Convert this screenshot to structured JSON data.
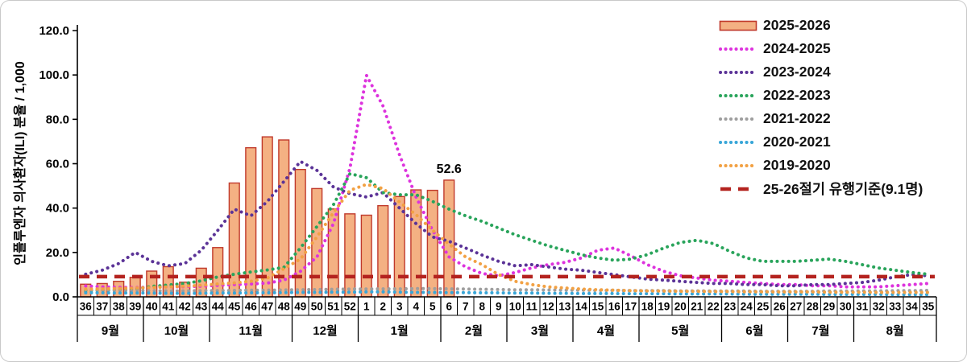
{
  "figure": {
    "background": "#ffffff",
    "border_color": "#c9c9c9"
  },
  "annotation": {
    "text": "52.6",
    "week": "6"
  },
  "legend": [
    {
      "label": "2025-2026",
      "swatch": "bar",
      "color": "#C0392B",
      "fill": "#F4B183"
    },
    {
      "label": "2024-2025",
      "swatch": "dots",
      "color": "#DD33DD"
    },
    {
      "label": "2023-2024",
      "swatch": "dots",
      "color": "#5B3397"
    },
    {
      "label": "2022-2023",
      "swatch": "dots",
      "color": "#29A45B"
    },
    {
      "label": "2021-2022",
      "swatch": "dots",
      "color": "#9E9E9E"
    },
    {
      "label": "2020-2021",
      "swatch": "dots",
      "color": "#38A6D8"
    },
    {
      "label": "2019-2020",
      "swatch": "dots",
      "color": "#F2A144"
    },
    {
      "label": "25-26절기 유행기준(9.1명)",
      "swatch": "dash",
      "color": "#B4231F"
    }
  ],
  "chart_data": {
    "type": "combo-bar-line",
    "title": "",
    "xlabel": "",
    "ylabel": "인플루엔자 의사환자(ILI) 분율 / 1,000",
    "ylim": [
      0,
      120
    ],
    "y_ticks": [
      "0.0",
      "20.0",
      "40.0",
      "60.0",
      "80.0",
      "100.0",
      "120.0"
    ],
    "grid": false,
    "legend_position": "top-right",
    "categories": [
      "36",
      "37",
      "38",
      "39",
      "40",
      "41",
      "42",
      "43",
      "44",
      "45",
      "46",
      "47",
      "48",
      "49",
      "50",
      "51",
      "52",
      "1",
      "2",
      "3",
      "4",
      "5",
      "6",
      "7",
      "8",
      "9",
      "10",
      "11",
      "12",
      "13",
      "14",
      "15",
      "16",
      "17",
      "18",
      "19",
      "20",
      "21",
      "22",
      "23",
      "24",
      "25",
      "26",
      "27",
      "28",
      "29",
      "30",
      "31",
      "32",
      "33",
      "34",
      "35"
    ],
    "months": [
      {
        "label": "9월",
        "span": 4
      },
      {
        "label": "10월",
        "span": 4
      },
      {
        "label": "11월",
        "span": 5
      },
      {
        "label": "12월",
        "span": 4
      },
      {
        "label": "1월",
        "span": 5
      },
      {
        "label": "2월",
        "span": 4
      },
      {
        "label": "3월",
        "span": 4
      },
      {
        "label": "4월",
        "span": 4
      },
      {
        "label": "5월",
        "span": 5
      },
      {
        "label": "6월",
        "span": 4
      },
      {
        "label": "7월",
        "span": 4
      },
      {
        "label": "8월",
        "span": 5
      }
    ],
    "bar_series": {
      "name": "2025-2026",
      "fill": "#F4B183",
      "stroke": "#C0392B",
      "values": [
        5.7,
        6.0,
        7.0,
        8.8,
        11.6,
        13.6,
        6.6,
        12.9,
        22.2,
        51.3,
        67.2,
        72.1,
        70.7,
        57.4,
        48.8,
        39.6,
        37.4,
        36.8,
        41.1,
        45.2,
        48.2,
        48.0,
        52.6,
        null,
        null,
        null,
        null,
        null,
        null,
        null,
        null,
        null,
        null,
        null,
        null,
        null,
        null,
        null,
        null,
        null,
        null,
        null,
        null,
        null,
        null,
        null,
        null,
        null,
        null,
        null,
        null,
        null
      ]
    },
    "line_series": [
      {
        "name": "2024-2025",
        "color": "#DD33DD",
        "values": [
          4.9,
          4.5,
          4.3,
          4.2,
          4.3,
          4.5,
          4.6,
          4.8,
          5.2,
          5.5,
          5.8,
          6.2,
          7.5,
          11.5,
          18,
          33,
          58,
          99.8,
          86,
          64,
          45,
          30,
          18,
          13.5,
          10.5,
          9.5,
          11,
          13,
          14.5,
          15.5,
          17.5,
          21,
          22,
          18.5,
          14.5,
          11.5,
          9.5,
          8.5,
          7.5,
          7,
          6.5,
          6,
          5.5,
          5.5,
          5,
          5,
          4.5,
          4.5,
          4.5,
          5,
          5.5,
          6
        ]
      },
      {
        "name": "2023-2024",
        "color": "#5B3397",
        "values": [
          10.2,
          12,
          15,
          20,
          16,
          14,
          15,
          21,
          30,
          39.5,
          36.5,
          43,
          52,
          61,
          57,
          49.5,
          46.5,
          45,
          47,
          40,
          33,
          27,
          25,
          22,
          18.8,
          16,
          14,
          14.5,
          13.5,
          12.5,
          12,
          11,
          10,
          9,
          8,
          7.5,
          7,
          6.5,
          6,
          6,
          5.5,
          5.5,
          5,
          5,
          5.5,
          5.5,
          6,
          6.5,
          7.5,
          9,
          10,
          9.5
        ]
      },
      {
        "name": "2022-2023",
        "color": "#29A45B",
        "values": [
          2.8,
          3,
          3.2,
          3.5,
          4.7,
          5.3,
          6,
          7.2,
          9,
          10.2,
          11.2,
          12.1,
          13.3,
          22,
          31.7,
          41.5,
          55.5,
          53.7,
          47,
          46,
          46,
          43,
          39.5,
          36.5,
          34,
          31,
          28,
          25.5,
          23,
          21,
          19,
          17.5,
          16.5,
          17,
          19,
          22,
          24.5,
          25.5,
          24,
          20.5,
          17.5,
          16,
          16,
          16,
          16.5,
          17,
          16,
          14.5,
          13,
          12,
          11,
          10.2
        ]
      },
      {
        "name": "2021-2022",
        "color": "#9E9E9E",
        "values": [
          3.2,
          3.0,
          2.9,
          2.8,
          2.8,
          2.7,
          2.7,
          2.8,
          2.8,
          2.9,
          3.0,
          3.0,
          3.1,
          3.2,
          3.3,
          3.4,
          3.5,
          3.5,
          3.6,
          3.6,
          3.7,
          3.7,
          3.6,
          3.5,
          3.4,
          3.3,
          3.2,
          3.2,
          3.1,
          3.0,
          3.0,
          2.9,
          2.9,
          2.8,
          2.8,
          2.8,
          2.7,
          2.7,
          2.6,
          2.6,
          2.6,
          2.5,
          2.5,
          2.5,
          2.5,
          2.6,
          2.6,
          2.7,
          2.7,
          2.8,
          2.8,
          2.9
        ]
      },
      {
        "name": "2020-2021",
        "color": "#38A6D8",
        "values": [
          1.8,
          1.8,
          1.7,
          1.7,
          1.7,
          1.6,
          1.6,
          1.6,
          1.7,
          1.7,
          1.8,
          1.8,
          1.9,
          2.0,
          2.0,
          2.1,
          2.1,
          2.2,
          2.2,
          2.1,
          2.0,
          2.0,
          1.9,
          1.9,
          1.8,
          1.8,
          1.7,
          1.7,
          1.6,
          1.6,
          1.5,
          1.5,
          1.5,
          1.4,
          1.4,
          1.4,
          1.3,
          1.3,
          1.3,
          1.3,
          1.2,
          1.2,
          1.2,
          1.2,
          1.2,
          1.1,
          1.1,
          1.1,
          1.1,
          1.0,
          1.0,
          1.0
        ]
      },
      {
        "name": "2019-2020",
        "color": "#F2A144",
        "values": [
          3.5,
          3.6,
          3.8,
          4.0,
          4.2,
          4.5,
          4.8,
          5.2,
          5.8,
          6.3,
          7.0,
          8.5,
          12.7,
          17,
          27,
          38,
          48,
          50.7,
          48.8,
          42.7,
          37,
          30,
          23.7,
          18,
          14.5,
          10,
          7,
          5.5,
          4.5,
          4.0,
          3.5,
          3.2,
          3.0,
          2.8,
          2.7,
          2.6,
          2.5,
          2.5,
          2.4,
          2.4,
          2.3,
          2.3,
          2.2,
          2.2,
          2.2,
          2.1,
          2.1,
          2.1,
          2.0,
          2.0,
          2.0,
          2.0
        ]
      }
    ],
    "threshold": {
      "name": "25-26절기 유행기준(9.1명)",
      "value": 9.1,
      "color": "#B4231F"
    }
  }
}
